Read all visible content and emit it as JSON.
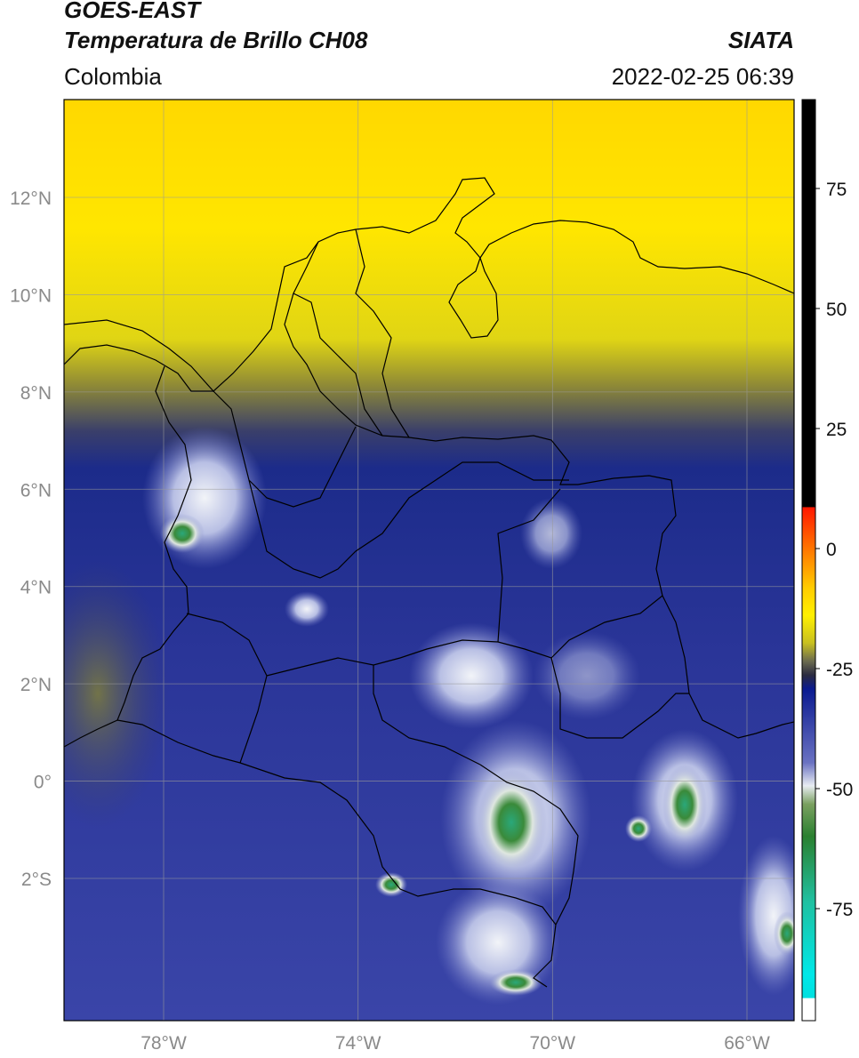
{
  "header": {
    "title_line1": "GOES-EAST",
    "title_line2": "Temperatura de Brillo CH08",
    "source": "SIATA",
    "region": "Colombia",
    "timestamp": "2022-02-25 06:39"
  },
  "map": {
    "lon_ticks": [
      {
        "value": -78,
        "label": "78°W"
      },
      {
        "value": -74,
        "label": "74°W"
      },
      {
        "value": -70,
        "label": "70°W"
      },
      {
        "value": -66,
        "label": "66°W"
      }
    ],
    "lat_ticks": [
      {
        "value": 12,
        "label": "12°N"
      },
      {
        "value": 10,
        "label": "10°N"
      },
      {
        "value": 8,
        "label": "8°N"
      },
      {
        "value": 6,
        "label": "6°N"
      },
      {
        "value": 4,
        "label": "4°N"
      },
      {
        "value": 2,
        "label": "2°N"
      },
      {
        "value": 0,
        "label": "0°"
      },
      {
        "value": -2,
        "label": "2°S"
      }
    ]
  },
  "colorbar": {
    "ticks": [
      {
        "value": 75,
        "label": "75"
      },
      {
        "value": 50,
        "label": "50"
      },
      {
        "value": 25,
        "label": "25"
      },
      {
        "value": 0,
        "label": "0"
      },
      {
        "value": -25,
        "label": "-25"
      },
      {
        "value": -50,
        "label": "-50"
      },
      {
        "value": -75,
        "label": "-75"
      }
    ]
  }
}
